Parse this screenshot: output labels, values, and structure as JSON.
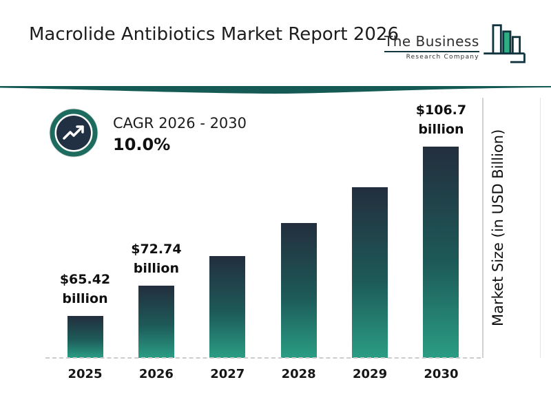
{
  "header": {
    "title": "Macrolide Antibiotics Market Report 2026",
    "logo": {
      "line1": "The Business",
      "line2": "Research Company"
    }
  },
  "cagr": {
    "label": "CAGR 2026 - 2030",
    "value": "10.0%"
  },
  "chart_data": {
    "type": "bar",
    "title": "Macrolide Antibiotics Market Report 2026",
    "categories": [
      "2025",
      "2026",
      "2027",
      "2028",
      "2029",
      "2030"
    ],
    "values": [
      65.42,
      72.74,
      80.01,
      88.02,
      96.82,
      106.7
    ],
    "bar_labels": [
      "$65.42 billion",
      "$72.74 billion",
      "",
      "",
      "",
      "$106.7 billion"
    ],
    "xlabel": "",
    "ylabel": "Market Size (in USD Billion)",
    "ylim": [
      0,
      115
    ],
    "grid": false,
    "legend": "none",
    "colors": {
      "bar_gradient_top": "#232e3d",
      "bar_gradient_bottom": "#2a9d84",
      "divider_teal": "#155a54",
      "logo_green": "#2fae85",
      "logo_outline": "#12343f",
      "ring_teal": "#1d6b5e",
      "icon_inner_navy": "#223043",
      "axis_gray": "#cccccc",
      "text_dark": "#111111"
    }
  }
}
